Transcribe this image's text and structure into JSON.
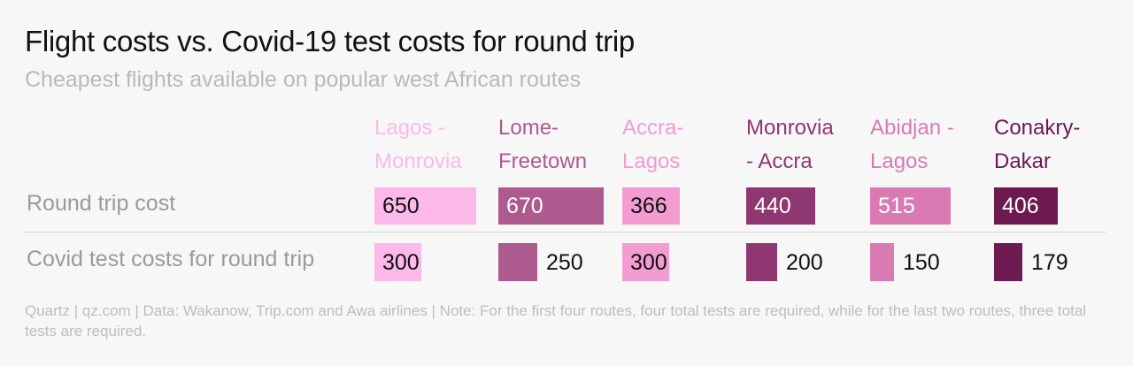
{
  "title": "Flight costs vs. Covid-19 test costs for round trip",
  "subtitle": "Cheapest flights available on popular west African routes",
  "row_labels": {
    "flight": "Round trip cost",
    "covid": "Covid test costs for round trip"
  },
  "footer": "Quartz | qz.com | Data: Wakanow, Trip.com and Awa airlines | Note: For the first four routes, four total tests are required, while for the last two routes, three total tests are required.",
  "chart_data": {
    "type": "bar",
    "title": "Flight costs vs. Covid-19 test costs for round trip",
    "subtitle": "Cheapest flights available on popular west African routes",
    "categories": [
      "Lagos - Monrovia",
      "Lome- Freetown",
      "Accra- Lagos",
      "Monrovia - Accra",
      "Abidjan - Lagos",
      "Conakry- Dakar"
    ],
    "category_labels": [
      "Lagos -\nMonrovia",
      "Lome-\nFreetown",
      "Accra-\nLagos",
      "Monrovia\n- Accra",
      "Abidjan -\nLagos",
      "Conakry-\nDakar"
    ],
    "colors": [
      "#fcb9ea",
      "#ad5a8e",
      "#f29cd2",
      "#8f3770",
      "#d97bb2",
      "#6c1a50"
    ],
    "series": [
      {
        "name": "Round trip cost",
        "values": [
          650,
          670,
          366,
          440,
          515,
          406
        ]
      },
      {
        "name": "Covid test costs for round trip",
        "values": [
          300,
          250,
          300,
          200,
          150,
          179
        ]
      }
    ],
    "value_label_colors": {
      "flight": [
        "#111111",
        "#ffffff",
        "#111111",
        "#ffffff",
        "#ffffff",
        "#ffffff"
      ],
      "covid": [
        "#111111",
        "#111111",
        "#111111",
        "#111111",
        "#111111",
        "#111111"
      ]
    }
  }
}
